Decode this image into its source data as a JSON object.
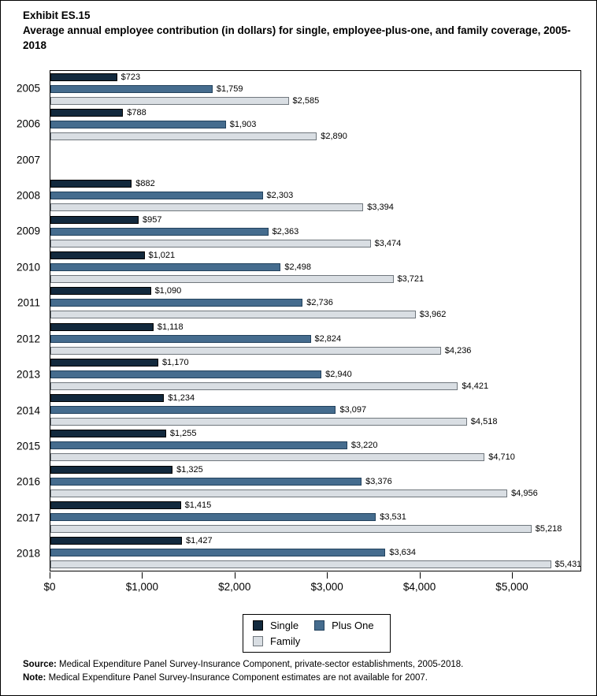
{
  "header": {
    "exhibit": "Exhibit ES.15",
    "title": "Average annual employee contribution (in dollars) for single, employee-plus-one, and family coverage, 2005-2018"
  },
  "chart_data": {
    "type": "bar",
    "orientation": "horizontal",
    "title": "Average annual employee contribution (in dollars) for single, employee-plus-one, and family coverage, 2005-2018",
    "categories": [
      "2005",
      "2006",
      "2007",
      "2008",
      "2009",
      "2010",
      "2011",
      "2012",
      "2013",
      "2014",
      "2015",
      "2016",
      "2017",
      "2018"
    ],
    "series": [
      {
        "name": "Single",
        "color": "#12293d",
        "border_color": "#000000",
        "values": [
          723,
          788,
          null,
          882,
          957,
          1021,
          1090,
          1118,
          1170,
          1234,
          1255,
          1325,
          1415,
          1427
        ],
        "labels": [
          "$723",
          "$788",
          "",
          "$882",
          "$957",
          "$1,021",
          "$1,090",
          "$1,118",
          "$1,170",
          "$1,234",
          "$1,255",
          "$1,325",
          "$1,415",
          "$1,427"
        ]
      },
      {
        "name": "Plus One",
        "color": "#456c8e",
        "border_color": "#22415c",
        "values": [
          1759,
          1903,
          null,
          2303,
          2363,
          2498,
          2736,
          2824,
          2940,
          3097,
          3220,
          3376,
          3531,
          3634
        ],
        "labels": [
          "$1,759",
          "$1,903",
          "",
          "$2,303",
          "$2,363",
          "$2,498",
          "$2,736",
          "$2,824",
          "$2,940",
          "$3,097",
          "$3,220",
          "$3,376",
          "$3,531",
          "$3,634"
        ]
      },
      {
        "name": "Family",
        "color": "#d9dee3",
        "border_color": "#70777d",
        "values": [
          2585,
          2890,
          null,
          3394,
          3474,
          3721,
          3962,
          4236,
          4421,
          4518,
          4710,
          4956,
          5218,
          5431
        ],
        "labels": [
          "$2,585",
          "$2,890",
          "",
          "$3,394",
          "$3,474",
          "$3,721",
          "$3,962",
          "$4,236",
          "$4,421",
          "$4,518",
          "$4,710",
          "$4,956",
          "$5,218",
          "$5,431"
        ]
      }
    ],
    "xlabel": "",
    "ylabel": "",
    "xlim": [
      0,
      5750
    ],
    "x_tick_values": [
      0,
      1000,
      2000,
      3000,
      4000,
      5000
    ],
    "x_tick_labels": [
      "$0",
      "$1,000",
      "$2,000",
      "$3,000",
      "$4,000",
      "$5,000"
    ],
    "grid": false,
    "legend_position": "bottom",
    "missing_data_note": "2007 estimates not available"
  },
  "legend": {
    "items": [
      {
        "label": "Single",
        "color": "#12293d",
        "border_color": "#000000"
      },
      {
        "label": "Plus One",
        "color": "#456c8e",
        "border_color": "#22415c"
      },
      {
        "label": "Family",
        "color": "#d9dee3",
        "border_color": "#70777d"
      }
    ]
  },
  "footer": {
    "source_label": "Source:",
    "source_text": "Medical Expenditure Panel Survey-Insurance Component, private-sector establishments, 2005-2018.",
    "note_label": "Note:",
    "note_text": "Medical Expenditure Panel Survey-Insurance Component estimates are not available for 2007."
  }
}
